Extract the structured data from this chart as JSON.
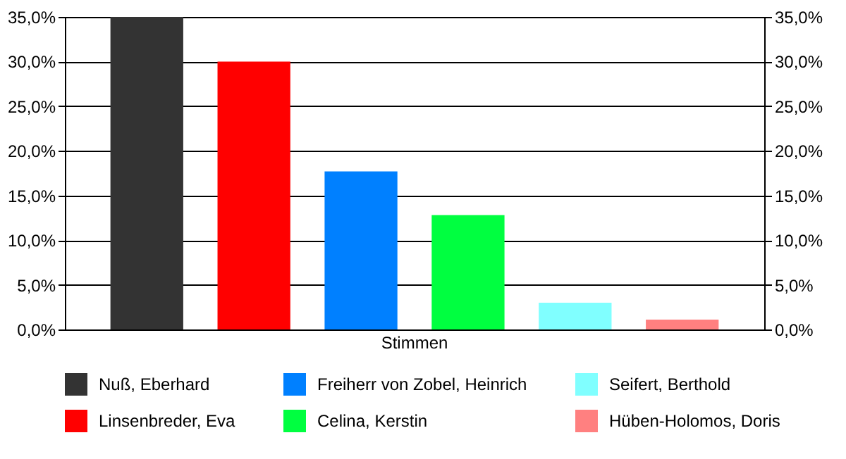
{
  "chart_data": {
    "type": "bar",
    "categories": [
      "Stimmen"
    ],
    "series": [
      {
        "name": "Nuß, Eberhard",
        "color": "#333333",
        "values": [
          35.0
        ]
      },
      {
        "name": "Linsenbreder, Eva",
        "color": "#ff0000",
        "values": [
          30.0
        ]
      },
      {
        "name": "Freiherr von Zobel, Heinrich",
        "color": "#0080ff",
        "values": [
          17.7
        ]
      },
      {
        "name": "Celina, Kerstin",
        "color": "#00ff40",
        "values": [
          12.8
        ]
      },
      {
        "name": "Seifert, Berthold",
        "color": "#80ffff",
        "values": [
          3.0
        ]
      },
      {
        "name": "Hüben-Holomos, Doris",
        "color": "#ff8080",
        "values": [
          1.1
        ]
      }
    ],
    "ylim": [
      0,
      35
    ],
    "yticks": [
      {
        "value": 0,
        "label": "0,0%"
      },
      {
        "value": 5,
        "label": "5,0%"
      },
      {
        "value": 10,
        "label": "10,0%"
      },
      {
        "value": 15,
        "label": "15,0%"
      },
      {
        "value": 20,
        "label": "20,0%"
      },
      {
        "value": 25,
        "label": "25,0%"
      },
      {
        "value": 30,
        "label": "30,0%"
      },
      {
        "value": 35,
        "label": "35,0%"
      }
    ],
    "grid": "y",
    "legend": "bottom"
  }
}
